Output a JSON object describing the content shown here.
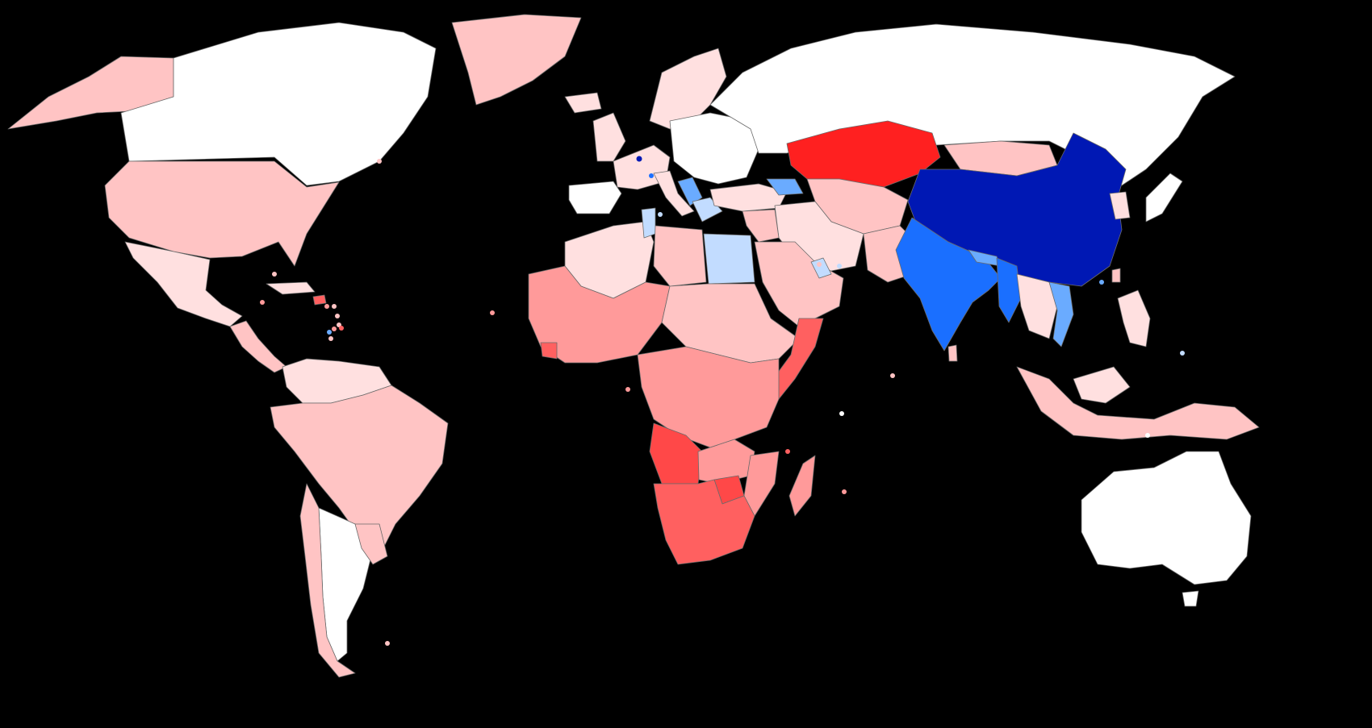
{
  "map": {
    "background": "#000000",
    "legend": null,
    "title": "",
    "colors": {
      "no_data": "#ffffff",
      "pink_very_light": "#ffe0e0",
      "pink_light": "#ffc4c4",
      "salmon": "#ff9a9a",
      "red_medium": "#ff6060",
      "red_strong": "#ff4848",
      "red_bright": "#ff2020",
      "blue_very_light": "#c2dcff",
      "blue_light": "#6aabff",
      "blue_medium": "#1a6fff",
      "blue_dark": "#0018b4"
    }
  }
}
